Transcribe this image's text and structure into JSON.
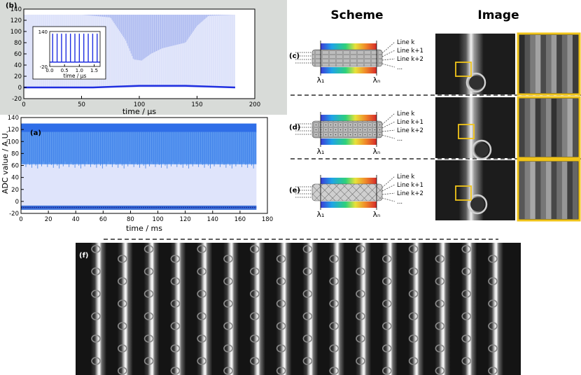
{
  "headers": {
    "scheme": "Scheme",
    "image": "Image"
  },
  "panel_labels": {
    "a": "(a)",
    "b": "(b)",
    "c": "(c)",
    "d": "(d)",
    "e": "(e)",
    "f": "(f)"
  },
  "scheme": {
    "lambda_1": "λ₁",
    "lambda_n": "λₙ",
    "lines": [
      "Line k",
      "Line k+1",
      "Line k+2",
      "..."
    ]
  },
  "colors": {
    "signal_light": "#aab8f0",
    "signal_dark": "#1f2ee0",
    "inset_line": "#1f2ee0",
    "zoom_box": "#f0c419",
    "spectrum": [
      "#3b3bd6",
      "#1fa3e8",
      "#2fd17a",
      "#e8e23a",
      "#f08a2a",
      "#d62a2a"
    ]
  },
  "chart_data": [
    {
      "id": "a",
      "type": "area",
      "xlabel": "time / ms",
      "ylabel": "ADC value / A.U.",
      "xlim": [
        0,
        180
      ],
      "ylim": [
        -20,
        140
      ],
      "xticks": [
        0,
        20,
        40,
        60,
        80,
        100,
        120,
        140,
        160,
        180
      ],
      "yticks": [
        -20,
        0,
        20,
        40,
        60,
        80,
        100,
        120,
        140
      ],
      "x_extent": [
        0,
        172
      ],
      "envelope_max": 130,
      "peak_band": [
        62,
        116
      ],
      "baseline": -10,
      "baseline_band": [
        -14,
        -7
      ],
      "grid": false
    },
    {
      "id": "b",
      "type": "line",
      "xlabel": "time / µs",
      "xlim": [
        0,
        200
      ],
      "ylim": [
        -20,
        140
      ],
      "xticks": [
        0,
        50,
        100,
        150,
        200
      ],
      "yticks": [
        -20,
        0,
        20,
        40,
        60,
        80,
        100,
        120,
        140
      ],
      "x_extent": [
        0,
        183
      ],
      "envelope_top": 130,
      "envelope_bottom": {
        "x": [
          0,
          50,
          75,
          88,
          95,
          102,
          110,
          120,
          130,
          140,
          150,
          160,
          183
        ],
        "y": [
          130,
          130,
          125,
          85,
          50,
          48,
          60,
          70,
          75,
          80,
          110,
          128,
          130
        ]
      },
      "baseline": {
        "x": [
          0,
          60,
          100,
          140,
          183
        ],
        "y": [
          0,
          0,
          3,
          3,
          0
        ]
      },
      "grid": false
    },
    {
      "id": "b_inset",
      "type": "line",
      "xlabel": "time / µs",
      "xlim": [
        0,
        1.7
      ],
      "ylim": [
        -20,
        140
      ],
      "xticks": [
        0.0,
        0.5,
        1.0,
        1.5
      ],
      "xtick_labels": [
        "0.0",
        "0.5",
        "1.0",
        "1.5"
      ],
      "yticks": [
        -20,
        140
      ],
      "pulse_times": [
        0.1,
        0.25,
        0.4,
        0.55,
        0.7,
        0.85,
        1.0,
        1.15,
        1.3,
        1.45,
        1.6
      ],
      "pulse_height": 130,
      "baseline": 0,
      "grid": false
    }
  ]
}
